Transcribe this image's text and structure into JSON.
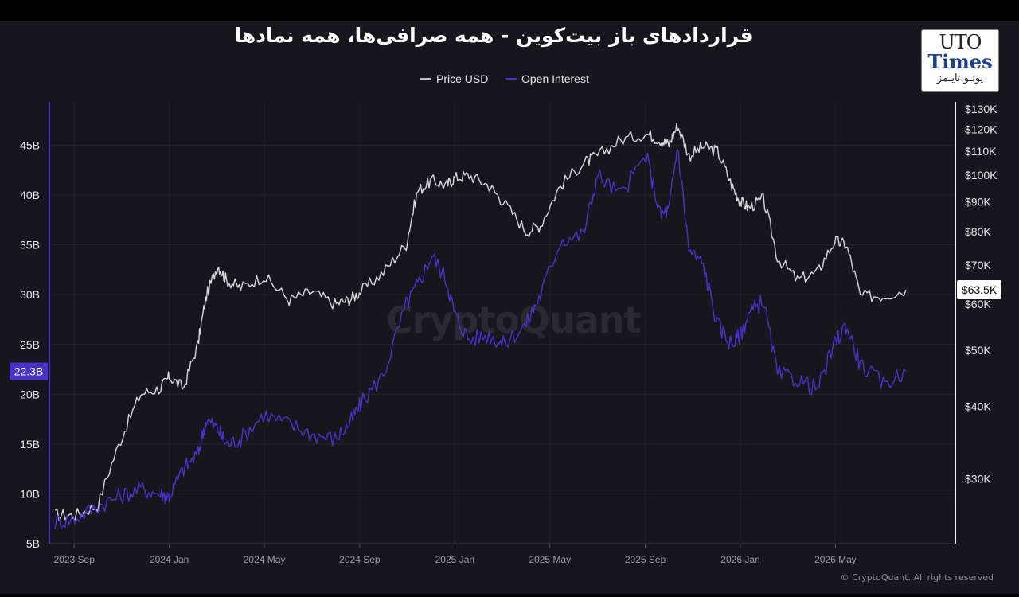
{
  "header": {
    "title": "قراردادهای باز بیت‌کوین - همه صرافی‌ها، همه نمادها"
  },
  "logo": {
    "line1": "UTO",
    "line2": "Times",
    "line3": "یوتـو تایـمز"
  },
  "watermark": "CryptoQuant",
  "copyright": "© CryptoQuant. All rights reserved",
  "colors": {
    "background": "#17161c",
    "price": "#d8d8dc",
    "open_interest": "#4a32c8",
    "badge_oi": "#4a32c8"
  },
  "chart_data": {
    "type": "line",
    "title": "قراردادهای باز بیت‌کوین - همه صرافی‌ها، همه نمادها",
    "legend": {
      "placement": "top-center",
      "items": [
        "Price USD",
        "Open Interest"
      ]
    },
    "grid": true,
    "x_ticks": [
      "2023 Sep",
      "2024 Jan",
      "2024 May",
      "2024 Sep",
      "2025 Jan",
      "2025 May",
      "2025 Sep",
      "2026 Jan",
      "2026 May"
    ],
    "x_range": [
      "2023-08",
      "2026-09"
    ],
    "y_left": {
      "series": "Open Interest",
      "ticks": [
        "5B",
        "10B",
        "15B",
        "20B",
        "25B",
        "30B",
        "35B",
        "40B",
        "45B"
      ],
      "ylim": [
        5,
        50
      ],
      "unit": "B",
      "scale": "linear"
    },
    "y_right": {
      "series": "Price USD",
      "ticks": [
        "$30K",
        "$40K",
        "$50K",
        "$60K",
        "$70K",
        "$80K",
        "$90K",
        "$100K",
        "$110K",
        "$120K",
        "$130K"
      ],
      "ylim": [
        22,
        130
      ],
      "unit": "K",
      "scale": "log"
    },
    "current_badges": {
      "open_interest": "22.3B",
      "price": "$63.5K"
    },
    "series": [
      {
        "name": "Price USD",
        "axis": "right",
        "x": [
          2023.6,
          2023.67,
          2023.75,
          2023.83,
          2023.9,
          2023.97,
          2024.0,
          2024.05,
          2024.1,
          2024.13,
          2024.17,
          2024.2,
          2024.25,
          2024.33,
          2024.42,
          2024.5,
          2024.58,
          2024.63,
          2024.67,
          2024.75,
          2024.83,
          2024.87,
          2024.92,
          2024.97,
          2025.0,
          2025.05,
          2025.12,
          2025.17,
          2025.25,
          2025.3,
          2025.37,
          2025.45,
          2025.5,
          2025.58,
          2025.67,
          2025.72,
          2025.75,
          2025.78,
          2025.82,
          2025.87,
          2025.92,
          2025.97,
          2026.0,
          2026.03,
          2026.08,
          2026.13,
          2026.2,
          2026.27,
          2026.33,
          2026.37,
          2026.42,
          2026.5,
          2026.58
        ],
        "values": [
          26,
          26,
          27,
          35,
          42,
          43,
          45,
          43,
          51,
          62,
          70,
          66,
          64,
          67,
          61,
          63,
          60,
          61,
          63,
          68,
          76,
          94,
          98,
          96,
          99,
          100,
          96,
          90,
          80,
          82,
          96,
          105,
          108,
          115,
          118,
          115,
          113,
          122,
          108,
          112,
          110,
          96,
          90,
          88,
          91,
          72,
          66,
          68,
          77,
          76,
          62,
          62,
          63.5
        ]
      },
      {
        "name": "Open Interest",
        "axis": "left",
        "x": [
          2023.6,
          2023.67,
          2023.75,
          2023.83,
          2023.9,
          2023.97,
          2024.0,
          2024.05,
          2024.1,
          2024.13,
          2024.17,
          2024.2,
          2024.25,
          2024.33,
          2024.42,
          2024.5,
          2024.58,
          2024.63,
          2024.67,
          2024.75,
          2024.83,
          2024.87,
          2024.92,
          2024.97,
          2025.0,
          2025.05,
          2025.12,
          2025.17,
          2025.25,
          2025.3,
          2025.37,
          2025.45,
          2025.5,
          2025.58,
          2025.67,
          2025.72,
          2025.75,
          2025.78,
          2025.82,
          2025.87,
          2025.92,
          2025.97,
          2026.0,
          2026.03,
          2026.08,
          2026.13,
          2026.2,
          2026.27,
          2026.33,
          2026.37,
          2026.42,
          2026.5,
          2026.58
        ],
        "values": [
          7.2,
          7.5,
          8.8,
          9.8,
          10.5,
          10.0,
          9.8,
          12.5,
          14.0,
          17.5,
          16.5,
          15.0,
          15.5,
          18.0,
          17.0,
          16.0,
          15.5,
          17.0,
          19.0,
          22.0,
          29.0,
          31.0,
          34.0,
          31.5,
          28.0,
          25.5,
          26.0,
          25.0,
          27.0,
          30.0,
          35.5,
          36.0,
          42.0,
          40.0,
          44.0,
          38.0,
          38.5,
          45.0,
          34.5,
          33.0,
          27.0,
          25.0,
          26.0,
          28.0,
          29.5,
          22.0,
          21.5,
          20.5,
          25.0,
          27.0,
          23.0,
          21.0,
          22.3
        ]
      }
    ]
  }
}
